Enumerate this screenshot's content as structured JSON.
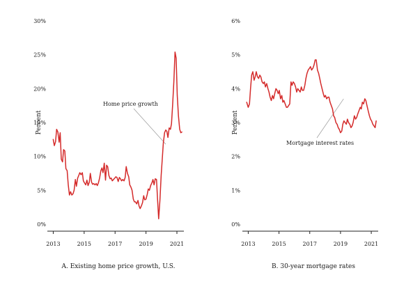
{
  "colors": {
    "series": "#d42a2a"
  },
  "chart_data": [
    {
      "type": "line",
      "title": "",
      "caption": "A. Existing home price growth, U.S.",
      "ylabel": "Percent",
      "xlabel": "",
      "xlim": [
        2012.8,
        2021.45
      ],
      "ylim": [
        0,
        30
      ],
      "y_ticks": [
        "0%",
        "5%",
        "10%",
        "15%",
        "20%",
        "25%",
        "30%"
      ],
      "x_ticks": [
        {
          "value": 2013,
          "label": "2013"
        },
        {
          "value": 2015,
          "label": "2015"
        },
        {
          "value": 2017,
          "label": "2017"
        },
        {
          "value": 2019,
          "label": "2019"
        },
        {
          "value": 2021,
          "label": "2021"
        }
      ],
      "annotation": {
        "text": "Home price growth",
        "point": [
          2020.28,
          11.8
        ]
      },
      "series": [
        {
          "x": [
            2013.0,
            2013.07,
            2013.15,
            2013.22,
            2013.3,
            2013.38,
            2013.45,
            2013.52,
            2013.6,
            2013.67,
            2013.75,
            2013.82,
            2013.9,
            2013.97,
            2014.05,
            2014.12,
            2014.2,
            2014.28,
            2014.35,
            2014.43,
            2014.5,
            2014.58,
            2014.65,
            2014.72,
            2014.8,
            2014.88,
            2014.95,
            2015.02,
            2015.1,
            2015.18,
            2015.25,
            2015.33,
            2015.4,
            2015.48,
            2015.55,
            2015.62,
            2015.7,
            2015.78,
            2015.85,
            2015.92,
            2016.0,
            2016.08,
            2016.15,
            2016.22,
            2016.3,
            2016.38,
            2016.45,
            2016.52,
            2016.6,
            2016.68,
            2016.75,
            2016.82,
            2016.9,
            2016.98,
            2017.05,
            2017.12,
            2017.2,
            2017.28,
            2017.35,
            2017.42,
            2017.5,
            2017.58,
            2017.65,
            2017.72,
            2017.8,
            2017.88,
            2017.95,
            2018.02,
            2018.1,
            2018.18,
            2018.25,
            2018.32,
            2018.4,
            2018.48,
            2018.55,
            2018.62,
            2018.7,
            2018.78,
            2018.85,
            2018.92,
            2019.0,
            2019.08,
            2019.15,
            2019.22,
            2019.3,
            2019.38,
            2019.45,
            2019.52,
            2019.6,
            2019.68,
            2019.75,
            2019.82,
            2019.9,
            2019.98,
            2020.05,
            2020.12,
            2020.2,
            2020.28,
            2020.35,
            2020.42,
            2020.5,
            2020.58,
            2020.65,
            2020.72,
            2020.8,
            2020.88,
            2020.95,
            2021.02,
            2021.1,
            2021.18,
            2021.25,
            2021.32
          ],
          "y": [
            12.5,
            11.6,
            12.2,
            14.0,
            13.6,
            12.1,
            13.5,
            9.6,
            9.2,
            11.0,
            10.8,
            8.2,
            7.9,
            5.8,
            4.3,
            4.8,
            4.3,
            4.5,
            5.0,
            6.6,
            5.6,
            6.8,
            7.2,
            7.6,
            7.3,
            7.6,
            6.4,
            6.1,
            5.8,
            6.5,
            5.7,
            6.2,
            7.5,
            6.2,
            5.9,
            6.0,
            5.8,
            6.0,
            5.7,
            6.1,
            6.8,
            7.9,
            8.3,
            7.6,
            9.0,
            6.5,
            8.7,
            8.5,
            7.2,
            6.7,
            6.8,
            6.4,
            6.6,
            6.8,
            7.0,
            6.9,
            6.3,
            6.9,
            6.7,
            6.4,
            6.6,
            6.4,
            6.9,
            8.5,
            7.5,
            7.0,
            5.8,
            5.5,
            5.0,
            3.7,
            3.3,
            3.3,
            3.0,
            3.5,
            2.7,
            2.3,
            2.7,
            3.2,
            4.2,
            3.6,
            3.7,
            4.4,
            5.2,
            5.0,
            5.7,
            6.1,
            6.6,
            5.8,
            6.7,
            6.6,
            3.5,
            0.8,
            3.5,
            7.2,
            9.5,
            12.0,
            13.5,
            13.9,
            13.7,
            12.8,
            14.2,
            14.0,
            14.8,
            17.5,
            21.0,
            25.4,
            24.5,
            19.0,
            16.0,
            14.0,
            13.5,
            13.6
          ]
        }
      ]
    },
    {
      "type": "line",
      "title": "",
      "caption": "B. 30-year mortgage rates",
      "ylabel": "Percent",
      "xlabel": "",
      "xlim": [
        2012.8,
        2021.45
      ],
      "ylim": [
        0,
        6
      ],
      "y_ticks": [
        "0%",
        "1%",
        "2%",
        "3%",
        "4%",
        "5%",
        "6%"
      ],
      "x_ticks": [
        {
          "value": 2013,
          "label": "2013"
        },
        {
          "value": 2015,
          "label": "2015"
        },
        {
          "value": 2017,
          "label": "2017"
        },
        {
          "value": 2019,
          "label": "2019"
        },
        {
          "value": 2021,
          "label": "2021"
        }
      ],
      "annotation": {
        "text": "Mortgage interest rates",
        "point": [
          2019.2,
          3.7
        ]
      },
      "series": [
        {
          "x": [
            2012.9,
            2013.0,
            2013.08,
            2013.15,
            2013.22,
            2013.3,
            2013.38,
            2013.45,
            2013.52,
            2013.6,
            2013.68,
            2013.75,
            2013.82,
            2013.9,
            2013.98,
            2014.05,
            2014.12,
            2014.2,
            2014.28,
            2014.35,
            2014.42,
            2014.5,
            2014.58,
            2014.65,
            2014.72,
            2014.8,
            2014.88,
            2014.95,
            2015.02,
            2015.1,
            2015.18,
            2015.25,
            2015.32,
            2015.4,
            2015.48,
            2015.55,
            2015.62,
            2015.7,
            2015.78,
            2015.85,
            2015.92,
            2016.0,
            2016.08,
            2016.15,
            2016.22,
            2016.3,
            2016.38,
            2016.45,
            2016.52,
            2016.6,
            2016.68,
            2016.75,
            2016.82,
            2016.9,
            2016.98,
            2017.05,
            2017.12,
            2017.2,
            2017.28,
            2017.35,
            2017.42,
            2017.5,
            2017.58,
            2017.65,
            2017.72,
            2017.8,
            2017.88,
            2017.95,
            2018.02,
            2018.1,
            2018.18,
            2018.25,
            2018.32,
            2018.4,
            2018.48,
            2018.55,
            2018.62,
            2018.7,
            2018.78,
            2018.85,
            2018.92,
            2019.0,
            2019.08,
            2019.15,
            2019.22,
            2019.3,
            2019.38,
            2019.45,
            2019.52,
            2019.6,
            2019.68,
            2019.75,
            2019.82,
            2019.9,
            2019.98,
            2020.05,
            2020.12,
            2020.2,
            2020.28,
            2020.35,
            2020.42,
            2020.5,
            2020.58,
            2020.65,
            2020.72,
            2020.8,
            2020.88,
            2020.95,
            2021.02,
            2021.1,
            2021.18,
            2021.25,
            2021.32
          ],
          "y": [
            3.6,
            3.45,
            3.55,
            4.0,
            4.4,
            4.5,
            4.25,
            4.35,
            4.5,
            4.35,
            4.3,
            4.4,
            4.35,
            4.2,
            4.15,
            4.2,
            4.05,
            4.15,
            4.0,
            3.9,
            3.75,
            3.65,
            3.8,
            3.7,
            3.85,
            4.0,
            3.95,
            3.85,
            3.95,
            3.7,
            3.8,
            3.6,
            3.65,
            3.55,
            3.45,
            3.45,
            3.5,
            3.55,
            4.2,
            4.1,
            4.2,
            4.15,
            4.05,
            3.9,
            4.0,
            3.95,
            3.9,
            4.05,
            3.95,
            3.95,
            4.1,
            4.3,
            4.45,
            4.55,
            4.6,
            4.65,
            4.55,
            4.6,
            4.7,
            4.85,
            4.85,
            4.55,
            4.45,
            4.3,
            4.15,
            4.0,
            3.85,
            3.75,
            3.8,
            3.7,
            3.75,
            3.75,
            3.6,
            3.5,
            3.4,
            3.2,
            3.15,
            3.0,
            2.95,
            2.85,
            2.8,
            2.7,
            2.75,
            2.95,
            3.05,
            3.0,
            2.95,
            3.1,
            3.0,
            2.95,
            2.85,
            2.9,
            3.0,
            3.2,
            3.1,
            3.15,
            3.25,
            3.35,
            3.45,
            3.4,
            3.6,
            3.55,
            3.7,
            3.65,
            3.5,
            3.35,
            3.2,
            3.1,
            3.05,
            2.95,
            2.9,
            2.85,
            3.05
          ]
        }
      ]
    }
  ]
}
